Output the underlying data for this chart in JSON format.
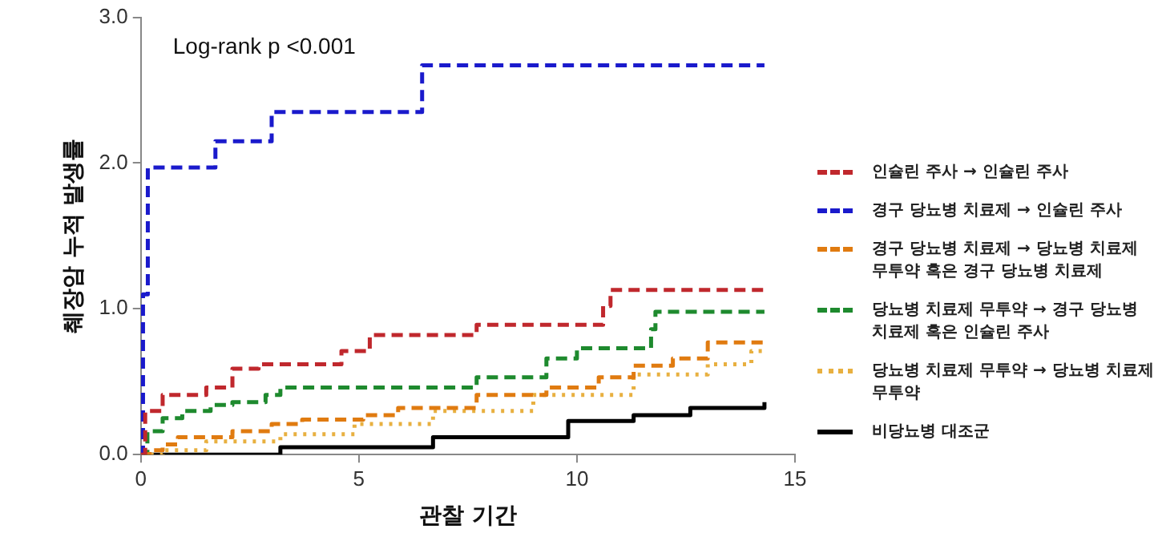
{
  "chart_data": {
    "type": "step",
    "xlabel": "관찰 기간",
    "ylabel": "췌장암 누적 발생률",
    "annotations": [
      "Log-rank p <0.001"
    ],
    "xlim": [
      0,
      15
    ],
    "xticks": [
      0,
      5,
      10,
      15
    ],
    "ylim": [
      0,
      3
    ],
    "yticks": [
      {
        "value": 0,
        "label": "0.0"
      },
      {
        "value": 1,
        "label": "1.0"
      },
      {
        "value": 2,
        "label": "2.0"
      },
      {
        "value": 3,
        "label": "3.0"
      }
    ],
    "grid": false,
    "legend": "right",
    "marker": "none",
    "series": [
      {
        "name": "인슐린 주사 → 인슐린 주사",
        "color": "#c0282d",
        "line_style": "dashed",
        "x": [
          0,
          0.1,
          0.5,
          1.5,
          2.1,
          2.7,
          4.6,
          5.25,
          7.7,
          10.6,
          10.77,
          14.3
        ],
        "values": [
          0,
          0.3,
          0.41,
          0.46,
          0.59,
          0.62,
          0.71,
          0.82,
          0.89,
          1.02,
          1.13,
          1.13
        ]
      },
      {
        "name": "경구 당뇨병 치료제 → 인슐린 주사",
        "color": "#1a1acc",
        "line_style": "dashed",
        "x": [
          0,
          0.05,
          0.16,
          1.71,
          3.0,
          6.45,
          14.3
        ],
        "values": [
          0,
          1.1,
          1.97,
          2.15,
          2.35,
          2.67,
          2.67
        ]
      },
      {
        "name": "경구 당뇨병 치료제 → 당뇨병 치료제 무투약 혹은 경구 당뇨병 치료제",
        "color": "#e07b10",
        "line_style": "dashed",
        "x": [
          0,
          0.2,
          0.5,
          0.85,
          2.1,
          3.0,
          3.7,
          5.1,
          5.9,
          7.7,
          9.3,
          10.5,
          11.3,
          12.2,
          13.0,
          14.3
        ],
        "values": [
          0,
          0.03,
          0.07,
          0.12,
          0.16,
          0.21,
          0.24,
          0.27,
          0.32,
          0.41,
          0.46,
          0.53,
          0.61,
          0.66,
          0.77,
          0.77
        ]
      },
      {
        "name": "당뇨병 치료제 무투약 → 경구 당뇨병 치료제 혹은 인슐린 주사",
        "color": "#1e8a2e",
        "line_style": "dashed",
        "x": [
          0,
          0.15,
          0.5,
          0.95,
          1.6,
          2.1,
          2.86,
          3.2,
          7.7,
          9.3,
          10.0,
          11.7,
          11.8,
          14.3
        ],
        "values": [
          0,
          0.16,
          0.25,
          0.3,
          0.34,
          0.36,
          0.41,
          0.46,
          0.53,
          0.66,
          0.73,
          0.86,
          0.98,
          0.98
        ]
      },
      {
        "name": "당뇨병 치료제 무투약 → 당뇨병 치료제 무투약",
        "color": "#e8b040",
        "line_style": "dotted",
        "x": [
          0,
          0.5,
          1.5,
          3.2,
          4.9,
          6.7,
          9.0,
          11.3,
          13.0,
          14.0,
          14.3
        ],
        "values": [
          0,
          0.03,
          0.09,
          0.14,
          0.21,
          0.3,
          0.41,
          0.55,
          0.62,
          0.71,
          0.71
        ]
      },
      {
        "name": "비당뇨병 대조군",
        "color": "#000000",
        "line_style": "solid",
        "x": [
          0,
          3.2,
          6.7,
          9.8,
          11.3,
          12.6,
          14.3
        ],
        "values": [
          0,
          0.05,
          0.12,
          0.23,
          0.27,
          0.32,
          0.36
        ]
      }
    ]
  }
}
